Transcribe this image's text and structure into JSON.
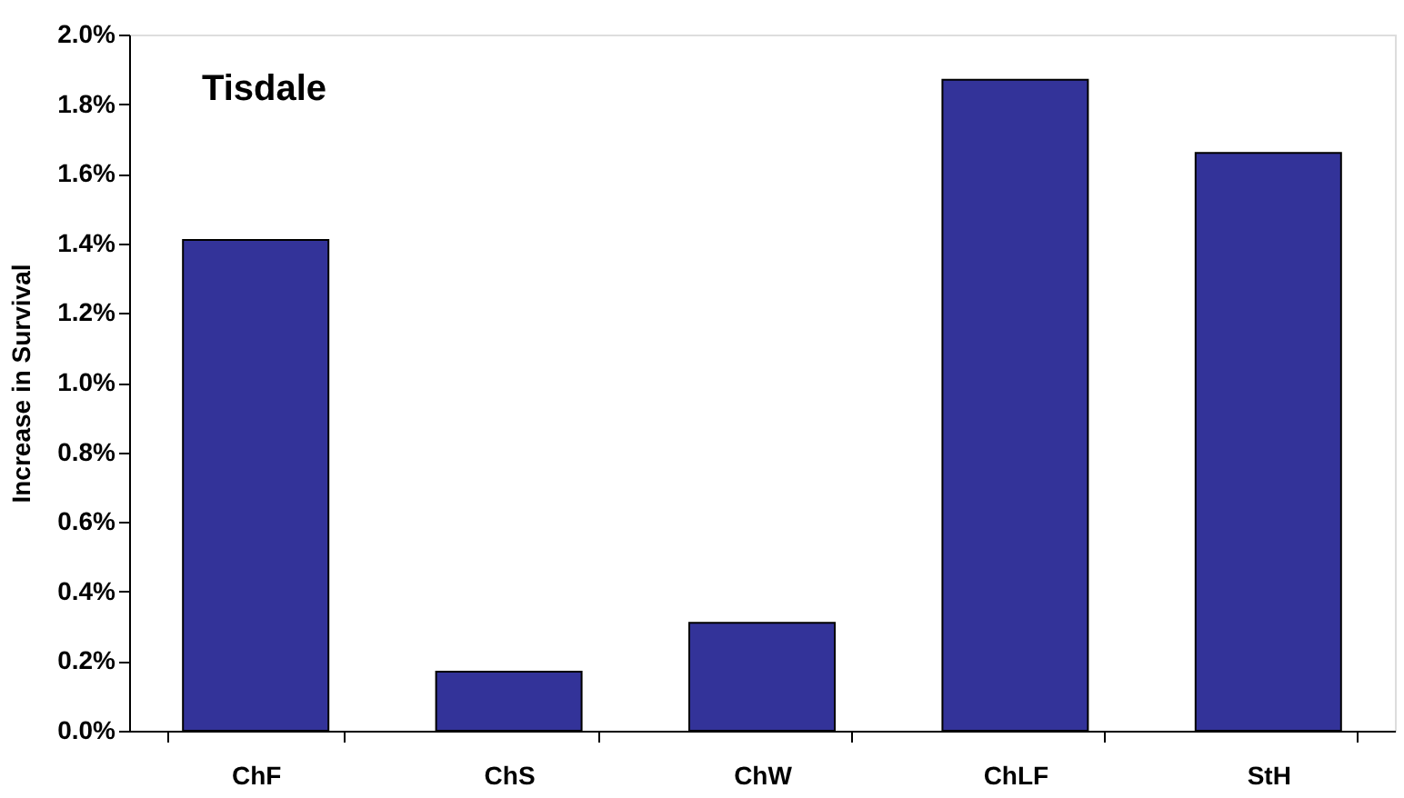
{
  "chart_data": {
    "type": "bar",
    "title": "Tisdale",
    "ylabel": "Increase in Survival",
    "categories": [
      "ChF",
      "ChS",
      "ChW",
      "ChLF",
      "StH"
    ],
    "values": [
      1.41,
      0.17,
      0.31,
      1.87,
      1.66
    ],
    "color": "#333399",
    "ylim": [
      0,
      2.0
    ],
    "yticks": [
      {
        "value": 0,
        "label": "0.0%"
      },
      {
        "value": 0.2,
        "label": "0.2%"
      },
      {
        "value": 0.4,
        "label": "0.4%"
      },
      {
        "value": 0.6,
        "label": "0.6%"
      },
      {
        "value": 0.8,
        "label": "0.8%"
      },
      {
        "value": 1.0,
        "label": "1.0%"
      },
      {
        "value": 1.2,
        "label": "1.2%"
      },
      {
        "value": 1.4,
        "label": "1.4%"
      },
      {
        "value": 1.6,
        "label": "1.6%"
      },
      {
        "value": 1.8,
        "label": "1.8%"
      },
      {
        "value": 2.0,
        "label": "2.0%"
      }
    ],
    "grid": false
  }
}
